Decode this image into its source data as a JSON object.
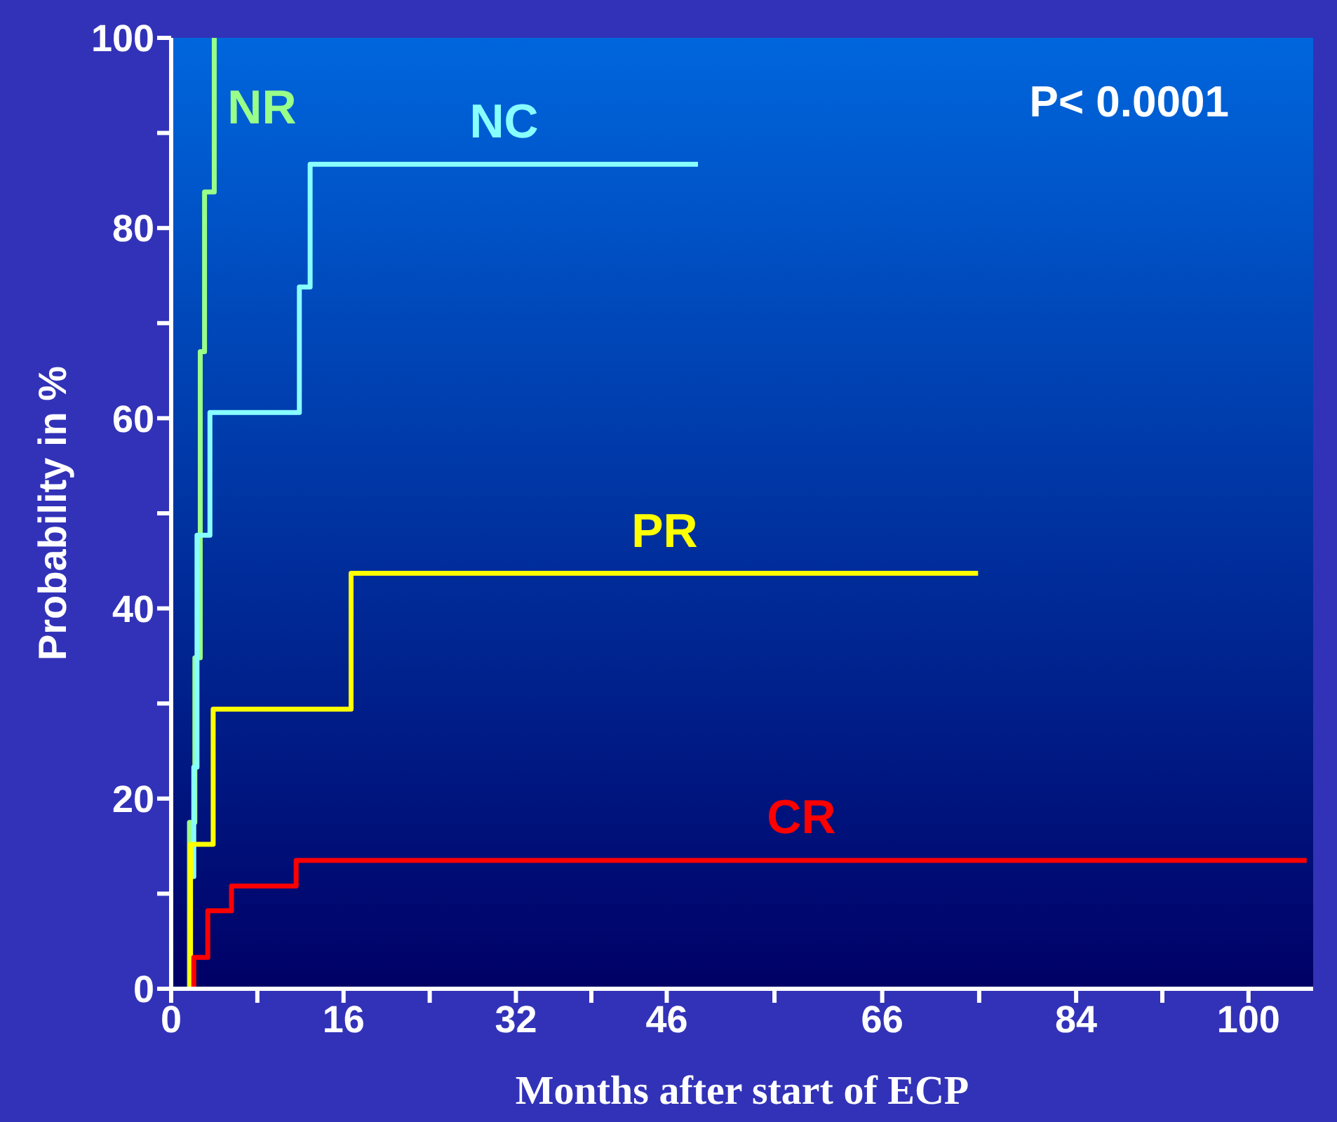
{
  "chart_data": {
    "type": "step",
    "xlabel": "Months after start of ECP",
    "ylabel": "Probability in %",
    "annotations": [
      "P< 0.0001"
    ],
    "xlim": [
      0,
      106
    ],
    "xticks": [
      0,
      {
        "value": 8,
        "label": null
      },
      16,
      {
        "value": 24,
        "label": null
      },
      32,
      {
        "value": 39,
        "label": null
      },
      46,
      {
        "value": 56,
        "label": null
      },
      66,
      {
        "value": 75,
        "label": null
      },
      84,
      {
        "value": 92,
        "label": null
      },
      100
    ],
    "ylim": [
      0,
      100
    ],
    "yticks": [
      0,
      {
        "value": 10,
        "label": null
      },
      20,
      {
        "value": 30,
        "label": null
      },
      40,
      {
        "value": 50,
        "label": null
      },
      60,
      {
        "value": 70,
        "label": null
      },
      80,
      {
        "value": 90,
        "label": null
      },
      100
    ],
    "grid": false,
    "legend": false,
    "marker": "none",
    "line_style": "solid",
    "series": [
      {
        "name": "NR",
        "color": "#99ff88",
        "x": [
          1.5,
          1.7,
          2.2,
          2.7,
          3.1,
          4.0
        ],
        "values": [
          0,
          17.5,
          34.8,
          67,
          83.8,
          100
        ]
      },
      {
        "name": "NC",
        "color": "#88ffff",
        "x": [
          2.0,
          2.1,
          2.4,
          3.6,
          11.9,
          12.9,
          48.9
        ],
        "values": [
          11.8,
          23.3,
          47.7,
          60.6,
          73.8,
          86.7,
          86.7
        ]
      },
      {
        "name": "PR",
        "color": "#ffff00",
        "x": [
          1.7,
          1.8,
          3.9,
          16.7,
          74.9
        ],
        "values": [
          0,
          15.2,
          29.4,
          43.7,
          43.7
        ]
      },
      {
        "name": "CR",
        "color": "#ff0000",
        "x": [
          1.9,
          2.1,
          3.4,
          5.6,
          11.6,
          105.4
        ],
        "values": [
          0,
          3.3,
          8.2,
          10.8,
          13.5,
          13.5
        ]
      }
    ]
  }
}
